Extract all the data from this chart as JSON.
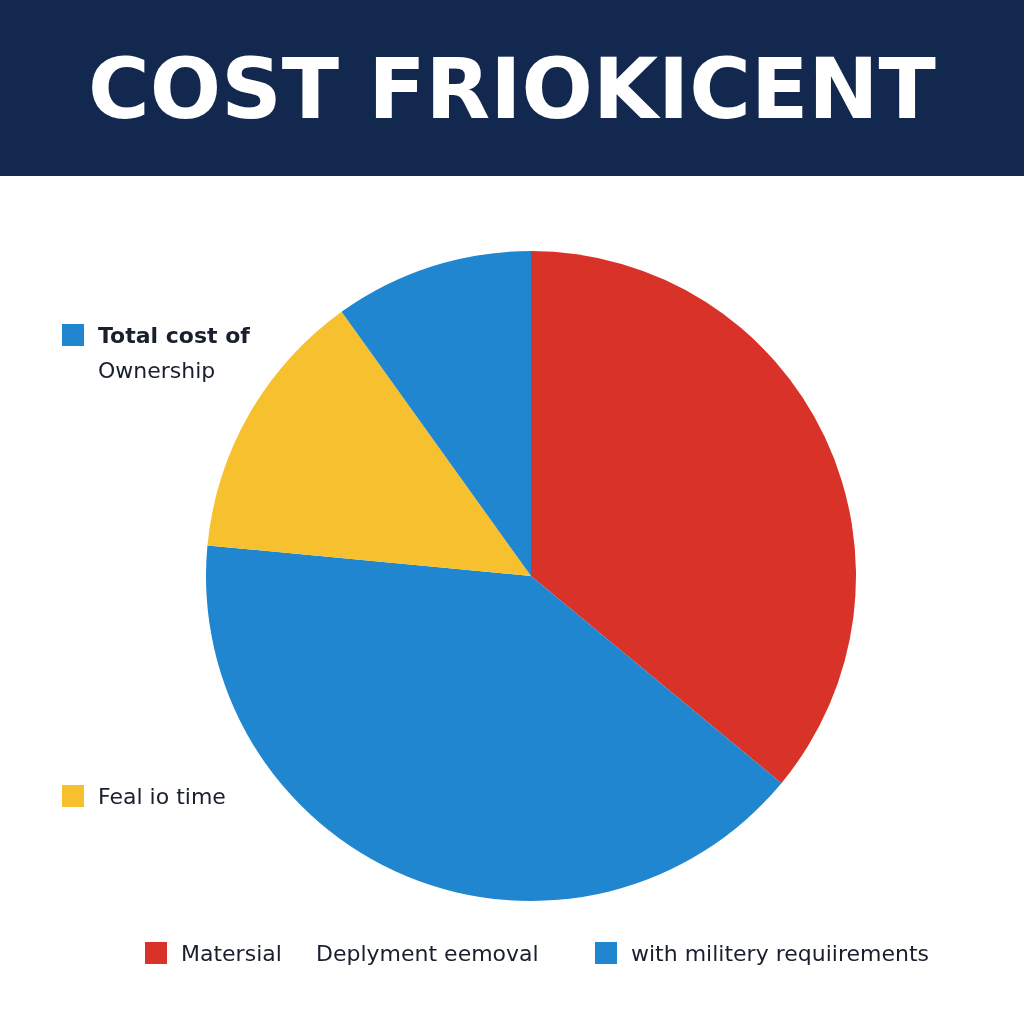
{
  "chart_data": {
    "type": "pie",
    "title": "COST FRIOKICENT",
    "categories": [
      "Matersial",
      "with militery requiirements",
      "Feal io time",
      "Total cost of Ownership"
    ],
    "values": [
      36,
      40.5,
      13.6,
      9.9
    ],
    "colors": [
      "#d93229",
      "#1f86cf",
      "#f6c02e",
      "#1f86cf"
    ],
    "legend": "left",
    "annotations": [
      "Deplyment eemoval"
    ]
  }
}
